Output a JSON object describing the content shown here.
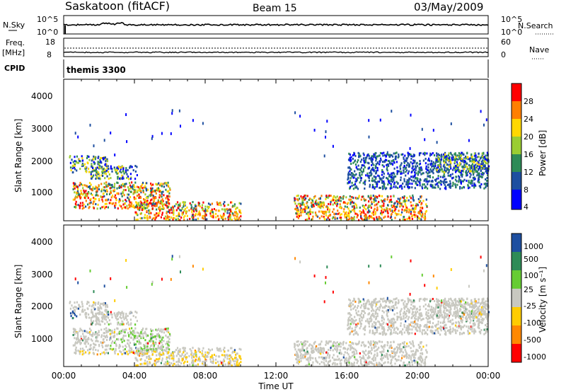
{
  "header": {
    "site": "Saskatoon (fitACF)",
    "beam": "Beam 15",
    "date": "03/May/2009"
  },
  "noise_panel": {
    "left_label": "N.Sky",
    "left_ticks": [
      "10^5",
      "10^0"
    ],
    "right_label": "N.Search",
    "right_ticks": [
      "10^5",
      "10^0"
    ]
  },
  "freq_panel": {
    "left_label_1": "Freq.",
    "left_label_2": "[MHz]",
    "left_ticks": [
      "18",
      "8"
    ],
    "right_label": "Nave",
    "right_ticks": [
      "60",
      "0"
    ]
  },
  "cpid_panel": {
    "label": "CPID",
    "value": "themis 3300"
  },
  "power_panel": {
    "ylabel": "Slant Range [km]",
    "yticks": [
      "4000",
      "3000",
      "2000",
      "1000"
    ],
    "colorbar_label": "Power [dB]",
    "colorbar_ticks": [
      "28",
      "24",
      "20",
      "16",
      "12",
      "8",
      "4"
    ],
    "colorbar_colors": [
      "#ff0000",
      "#ff7f00",
      "#ffd700",
      "#9acd32",
      "#2e8b57",
      "#1e4fa0",
      "#0000ff"
    ]
  },
  "velocity_panel": {
    "ylabel": "Slant Range [km]",
    "yticks": [
      "4000",
      "3000",
      "2000",
      "1000"
    ],
    "colorbar_label": "Velocity [m s⁻¹]",
    "colorbar_ticks": [
      "1000",
      "500",
      "100",
      "25",
      "-25",
      "-100",
      "-500",
      "-1000"
    ],
    "colorbar_colors": [
      "#1e4fa0",
      "#2e8b57",
      "#66cc33",
      "#c8c8c0",
      "#ffcc00",
      "#ff8800",
      "#ff0000"
    ]
  },
  "xaxis": {
    "ticks": [
      "00:00",
      "04:00",
      "08:00",
      "12:00",
      "16:00",
      "20:00",
      "00:00"
    ],
    "label": "Time UT"
  },
  "chart_data": {
    "type": "heatmap",
    "x_unit": "hours UT",
    "xlim": [
      0,
      24
    ],
    "ylim": [
      200,
      4500
    ],
    "power_echo_regions": [
      {
        "t0": 0.3,
        "t1": 2.5,
        "r0": 1700,
        "r1": 2200,
        "level": "mid"
      },
      {
        "t0": 1.5,
        "t1": 4.2,
        "r0": 1500,
        "r1": 1900,
        "level": "mid"
      },
      {
        "t0": 0.5,
        "t1": 6.0,
        "r0": 600,
        "r1": 1400,
        "level": "high"
      },
      {
        "t0": 4.0,
        "t1": 10.0,
        "r0": 250,
        "r1": 800,
        "level": "high"
      },
      {
        "t0": 13.0,
        "t1": 20.5,
        "r0": 250,
        "r1": 1000,
        "level": "high"
      },
      {
        "t0": 16.0,
        "t1": 24.0,
        "r0": 1200,
        "r1": 2300,
        "level": "low"
      },
      {
        "t0": 21.0,
        "t1": 24.0,
        "r0": 1700,
        "r1": 2300,
        "level": "mid"
      }
    ]
  }
}
